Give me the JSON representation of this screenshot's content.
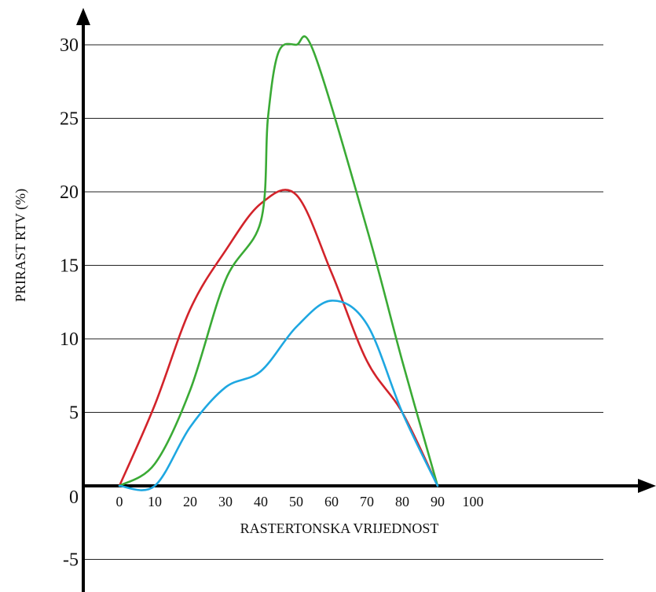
{
  "chart_data": {
    "type": "line",
    "xlabel": "RASTERTONSKA VRIJEDNOST",
    "ylabel": "PRIRAST RTV (%)",
    "xlim": [
      0,
      100
    ],
    "ylim": [
      -5,
      30
    ],
    "x_ticks": [
      0,
      10,
      20,
      30,
      40,
      50,
      60,
      70,
      80,
      90,
      100
    ],
    "y_ticks": [
      -5,
      0,
      5,
      10,
      15,
      20,
      25,
      30
    ],
    "grid": true,
    "legend": "none",
    "series": [
      {
        "color": "#d2232a",
        "x": [
          0,
          10,
          20,
          30,
          40,
          50,
          60,
          70,
          80,
          90
        ],
        "y": [
          0,
          5.5,
          12,
          16,
          19.2,
          19.8,
          14.5,
          8.5,
          5,
          0
        ]
      },
      {
        "color": "#3aaa35",
        "x": [
          0,
          10,
          20,
          30,
          40,
          42,
          45,
          50,
          55,
          70,
          80,
          90
        ],
        "y": [
          0,
          1.5,
          6.5,
          14,
          18,
          25,
          29.5,
          30,
          29.5,
          17.5,
          8.5,
          0
        ]
      },
      {
        "color": "#1ea7e1",
        "x": [
          0,
          10,
          20,
          30,
          40,
          50,
          60,
          70,
          80,
          90
        ],
        "y": [
          0,
          0,
          4,
          6.7,
          7.8,
          10.8,
          12.6,
          11,
          5,
          0
        ]
      }
    ]
  }
}
